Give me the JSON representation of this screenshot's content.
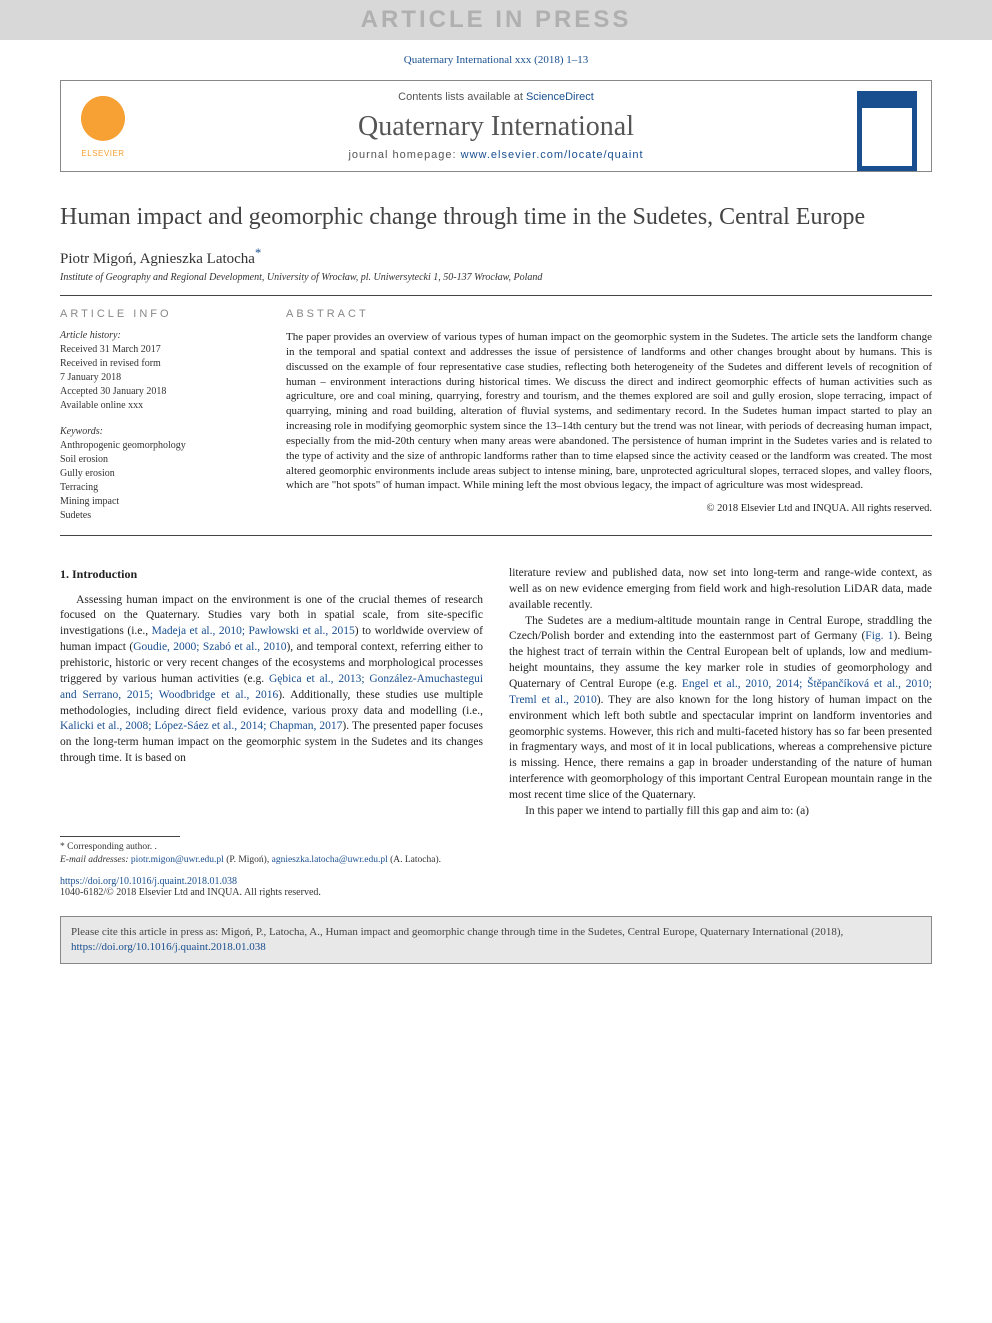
{
  "watermark": "ARTICLE IN PRESS",
  "header": {
    "citation_top": "Quaternary International xxx (2018) 1–13",
    "contents_prefix": "Contents lists available at ",
    "contents_link": "ScienceDirect",
    "journal": "Quaternary International",
    "homepage_prefix": "journal homepage: ",
    "homepage_link": "www.elsevier.com/locate/quaint",
    "publisher_logo_text": "ELSEVIER"
  },
  "title": "Human impact and geomorphic change through time in the Sudetes, Central Europe",
  "authors_html": "Piotr Migoń, Agnieszka Latocha",
  "corr_marker": "*",
  "affiliation": "Institute of Geography and Regional Development, University of Wrocław, pl. Uniwersytecki 1, 50-137 Wrocław, Poland",
  "article_info": {
    "header": "ARTICLE INFO",
    "history_label": "Article history:",
    "lines": [
      "Received 31 March 2017",
      "Received in revised form",
      "7 January 2018",
      "Accepted 30 January 2018",
      "Available online xxx"
    ],
    "keywords_label": "Keywords:",
    "keywords": [
      "Anthropogenic geomorphology",
      "Soil erosion",
      "Gully erosion",
      "Terracing",
      "Mining impact",
      "Sudetes"
    ]
  },
  "abstract": {
    "header": "ABSTRACT",
    "text": "The paper provides an overview of various types of human impact on the geomorphic system in the Sudetes. The article sets the landform change in the temporal and spatial context and addresses the issue of persistence of landforms and other changes brought about by humans. This is discussed on the example of four representative case studies, reflecting both heterogeneity of the Sudetes and different levels of recognition of human – environment interactions during historical times. We discuss the direct and indirect geomorphic effects of human activities such as agriculture, ore and coal mining, quarrying, forestry and tourism, and the themes explored are soil and gully erosion, slope terracing, impact of quarrying, mining and road building, alteration of fluvial systems, and sedimentary record. In the Sudetes human impact started to play an increasing role in modifying geomorphic system since the 13–14th century but the trend was not linear, with periods of decreasing human impact, especially from the mid-20th century when many areas were abandoned. The persistence of human imprint in the Sudetes varies and is related to the type of activity and the size of anthropic landforms rather than to time elapsed since the activity ceased or the landform was created. The most altered geomorphic environments include areas subject to intense mining, bare, unprotected agricultural slopes, terraced slopes, and valley floors, which are \"hot spots\" of human impact. While mining left the most obvious legacy, the impact of agriculture was most widespread.",
    "copyright": "© 2018 Elsevier Ltd and INQUA. All rights reserved."
  },
  "body": {
    "section_title": "1. Introduction",
    "col1_p1_pre": "Assessing human impact on the environment is one of the crucial themes of research focused on the Quaternary. Studies vary both in spatial scale, from site-specific investigations (i.e., ",
    "col1_ref1": "Madeja et al., 2010; Pawłowski et al., 2015",
    "col1_p1_mid1": ") to worldwide overview of human impact (",
    "col1_ref2": "Goudie, 2000; Szabó et al., 2010",
    "col1_p1_mid2": "), and temporal context, referring either to prehistoric, historic or very recent changes of the ecosystems and morphological processes triggered by various human activities (e.g. ",
    "col1_ref3": "Gębica et al., 2013; González-Amuchastegui and Serrano, 2015; Woodbridge et al., 2016",
    "col1_p1_mid3": "). Additionally, these studies use multiple methodologies, including direct field evidence, various proxy data and modelling (i.e., ",
    "col1_ref4": "Kalicki et al., 2008; López-Sáez et al., 2014; Chapman, 2017",
    "col1_p1_end": "). The presented paper focuses on the long-term human impact on the geomorphic system in the Sudetes and its changes through time. It is based on",
    "col2_p1": "literature review and published data, now set into long-term and range-wide context, as well as on new evidence emerging from field work and high-resolution LiDAR data, made available recently.",
    "col2_p2_pre": "The Sudetes are a medium-altitude mountain range in Central Europe, straddling the Czech/Polish border and extending into the easternmost part of Germany (",
    "col2_fig": "Fig. 1",
    "col2_p2_mid1": "). Being the highest tract of terrain within the Central European belt of uplands, low and medium-height mountains, they assume the key marker role in studies of geomorphology and Quaternary of Central Europe (e.g. ",
    "col2_ref1": "Engel et al., 2010, 2014; Štěpančíková et al., 2010; Treml et al., 2010",
    "col2_p2_end": "). They are also known for the long history of human impact on the environment which left both subtle and spectacular imprint on landform inventories and geomorphic systems. However, this rich and multi-faceted history has so far been presented in fragmentary ways, and most of it in local publications, whereas a comprehensive picture is missing. Hence, there remains a gap in broader understanding of the nature of human interference with geomorphology of this important Central European mountain range in the most recent time slice of the Quaternary.",
    "col2_p3": "In this paper we intend to partially fill this gap and aim to: (a)"
  },
  "footnotes": {
    "corr_label": "* Corresponding author. .",
    "email_label": "E-mail addresses:",
    "email1": "piotr.migon@uwr.edu.pl",
    "email1_who": " (P. Migoń), ",
    "email2": "agnieszka.latocha@uwr.edu.pl",
    "email2_who": " (A. Latocha)."
  },
  "doi": {
    "link": "https://doi.org/10.1016/j.quaint.2018.01.038",
    "issn_cr": "1040-6182/© 2018 Elsevier Ltd and INQUA. All rights reserved."
  },
  "citebox": {
    "text_pre": "Please cite this article in press as: Migoń, P., Latocha, A., Human impact and geomorphic change through time in the Sudetes, Central Europe, Quaternary International (2018), ",
    "link": "https://doi.org/10.1016/j.quaint.2018.01.038"
  },
  "colors": {
    "link": "#1a4f8f",
    "watermark_bg": "#d8d8d8",
    "watermark_fg": "#b0b0b0",
    "citebox_bg": "#e8e8e8",
    "header_muted": "#888"
  }
}
